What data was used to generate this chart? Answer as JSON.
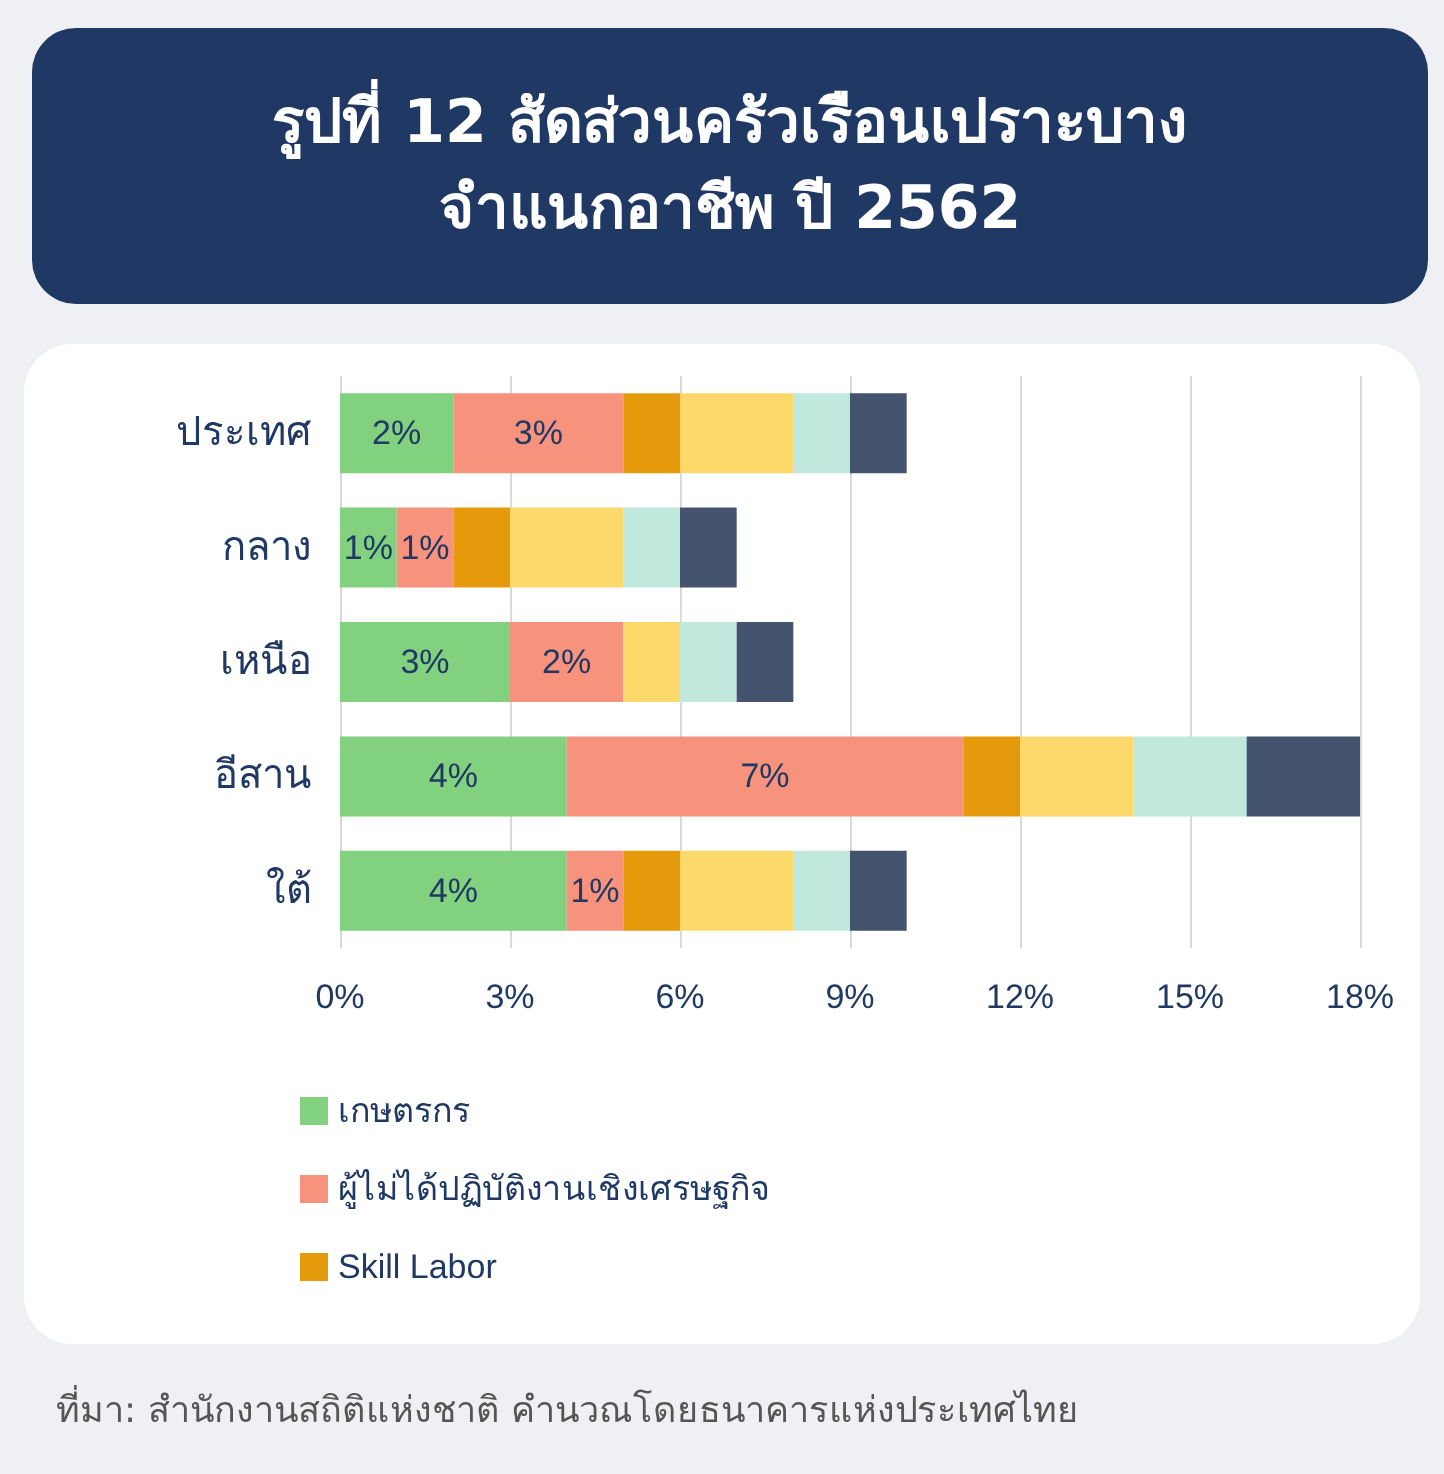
{
  "chart_data": {
    "type": "bar",
    "orientation": "horizontal",
    "stacked": true,
    "title": "รูปที่ 12 สัดส่วนครัวเรือนเปราะบาง\nจำแนกอาชีพ ปี 2562",
    "categories": [
      "ประเทศ",
      "กลาง",
      "เหนือ",
      "อีสาน",
      "ใต้"
    ],
    "series": [
      {
        "name": "เกษตรกร",
        "color": "#82d17f",
        "values": [
          2,
          1,
          3,
          4,
          4
        ],
        "value_labels": [
          "2%",
          "1%",
          "3%",
          "4%",
          "4%"
        ]
      },
      {
        "name": "ผู้ไม่ได้ปฏิบัติงานเชิงเศรษฐกิจ",
        "color": "#f7927c",
        "values": [
          3,
          1,
          2,
          7,
          1
        ],
        "value_labels": [
          "3%",
          "1%",
          "2%",
          "7%",
          "1%"
        ]
      },
      {
        "name": "Skill Labor",
        "color": "#e59a0c",
        "values": [
          1,
          1,
          0,
          1,
          1
        ]
      },
      {
        "color": "#fcd96a",
        "values": [
          2,
          2,
          1,
          2,
          2
        ]
      },
      {
        "color": "#c0e8dd",
        "values": [
          1,
          1,
          1,
          2,
          1
        ]
      },
      {
        "color": "#44546e",
        "values": [
          1,
          1,
          1,
          2,
          1
        ]
      }
    ],
    "xlim": [
      0,
      18
    ],
    "xticks": [
      {
        "value": 0,
        "label": "0%"
      },
      {
        "value": 3,
        "label": "3%"
      },
      {
        "value": 6,
        "label": "6%"
      },
      {
        "value": 9,
        "label": "9%"
      },
      {
        "value": 12,
        "label": "12%"
      },
      {
        "value": 15,
        "label": "15%"
      },
      {
        "value": 18,
        "label": "18%"
      }
    ],
    "grid": "x",
    "legend": "bottom left",
    "annotations": [
      "ที่มา: สำนักงานสถิติแห่งชาติ คำนวณโดยธนาคารแห่งประเทศไทย"
    ]
  }
}
